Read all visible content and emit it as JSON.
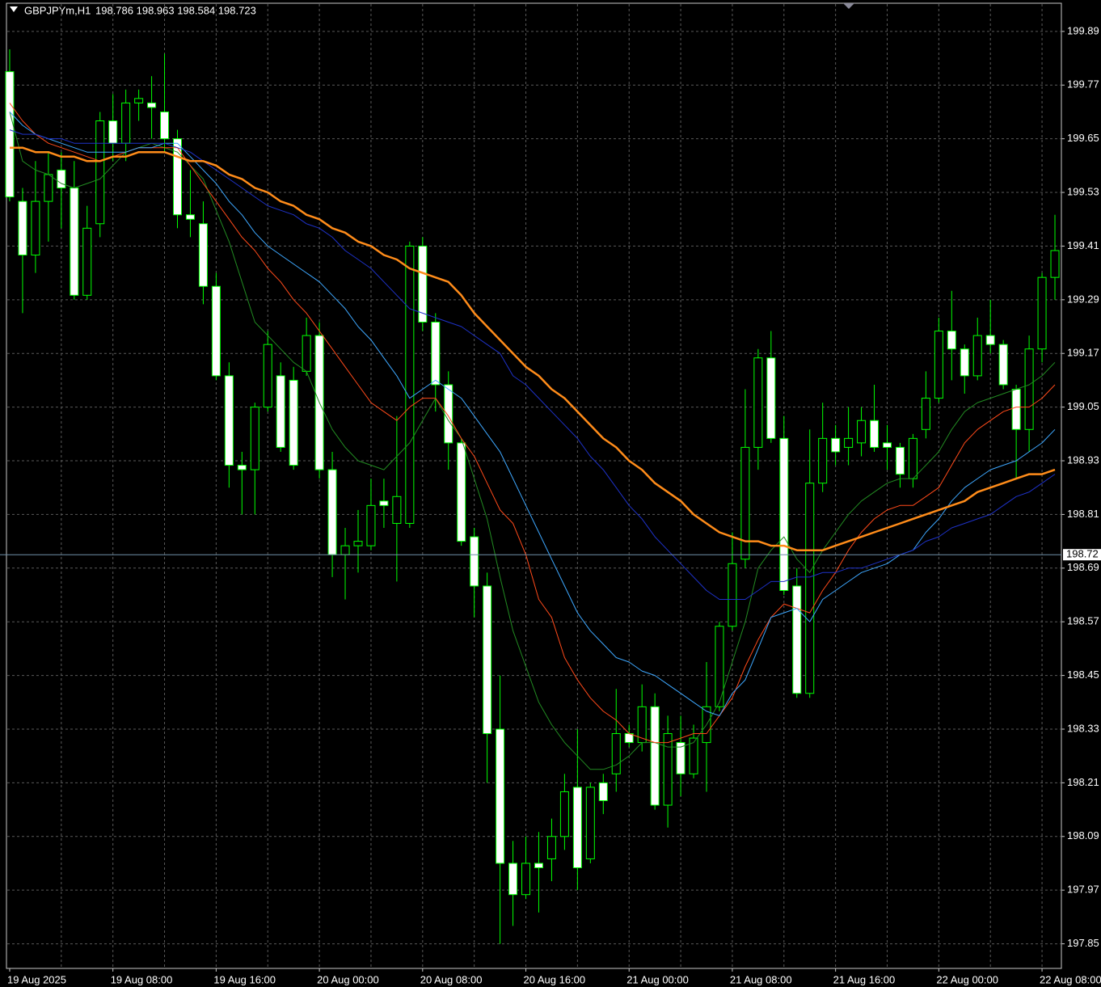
{
  "chart_data": {
    "type": "candlestick",
    "title": "GBPJPYm,H1",
    "subtitle": "198.786 198.963 198.584 198.723",
    "categories": [
      "19 Aug 2025",
      null,
      null,
      null,
      null,
      null,
      null,
      null,
      "19 Aug 08:00",
      null,
      null,
      null,
      null,
      null,
      null,
      null,
      "19 Aug 16:00",
      null,
      null,
      null,
      null,
      null,
      null,
      null,
      "20 Aug 00:00",
      null,
      null,
      null,
      null,
      null,
      null,
      null,
      "20 Aug 08:00",
      null,
      null,
      null,
      null,
      null,
      null,
      null,
      "20 Aug 16:00",
      null,
      null,
      null,
      null,
      null,
      null,
      null,
      "21 Aug 00:00",
      null,
      null,
      null,
      null,
      null,
      null,
      null,
      "21 Aug 08:00",
      null,
      null,
      null,
      null,
      null,
      null,
      null,
      "21 Aug 16:00",
      null,
      null,
      null,
      null,
      null,
      null,
      null,
      "22 Aug 00:00",
      null,
      null,
      null,
      null,
      null,
      null,
      null,
      "22 Aug 08:00",
      null
    ],
    "open": [
      199.8,
      199.51,
      199.39,
      199.51,
      199.58,
      199.54,
      199.3,
      199.46,
      199.69,
      199.64,
      199.73,
      199.73,
      199.71,
      199.65,
      199.48,
      199.46,
      199.32,
      199.12,
      198.92,
      198.91,
      199.05,
      199.12,
      199.11,
      199.13,
      199.21,
      198.91,
      198.72,
      198.74,
      198.74,
      198.84,
      198.79,
      198.79,
      199.41,
      199.24,
      199.1,
      198.97,
      198.76,
      198.65,
      198.33,
      198.03,
      197.96,
      198.03,
      198.04,
      198.09,
      198.2,
      198.04,
      198.21,
      198.23,
      198.32,
      198.3,
      198.38,
      198.16,
      198.3,
      198.23,
      198.3,
      198.38,
      198.56,
      198.71,
      198.96,
      199.16,
      198.98,
      198.65,
      198.41,
      198.88,
      198.98,
      198.96,
      198.97,
      199.02,
      198.97,
      198.96,
      198.89,
      199.0,
      199.07,
      199.22,
      199.18,
      199.12,
      199.21,
      199.19,
      199.09,
      199.0,
      199.18,
      199.34
    ],
    "high": [
      199.85,
      199.54,
      199.6,
      199.62,
      199.62,
      199.6,
      199.5,
      199.71,
      199.75,
      199.76,
      199.76,
      199.79,
      199.84,
      199.67,
      199.58,
      199.51,
      199.35,
      199.15,
      198.95,
      199.06,
      199.22,
      199.15,
      199.14,
      199.25,
      199.24,
      198.95,
      198.78,
      198.82,
      198.89,
      198.89,
      199.03,
      199.42,
      199.43,
      199.26,
      199.13,
      198.98,
      198.78,
      198.68,
      198.45,
      198.08,
      198.09,
      198.1,
      198.13,
      198.23,
      198.33,
      198.21,
      198.23,
      198.42,
      198.34,
      198.43,
      198.41,
      198.36,
      198.36,
      198.34,
      198.48,
      198.57,
      198.77,
      199.09,
      199.18,
      199.22,
      199.03,
      198.69,
      199.0,
      199.06,
      199.01,
      199.05,
      199.05,
      199.1,
      199.01,
      198.97,
      198.99,
      199.13,
      199.25,
      199.31,
      199.19,
      199.25,
      199.29,
      199.2,
      199.1,
      199.21,
      199.35,
      199.48
    ],
    "low": [
      199.51,
      199.26,
      199.35,
      199.42,
      199.45,
      199.29,
      199.29,
      199.43,
      199.6,
      199.6,
      199.69,
      199.65,
      199.62,
      199.45,
      199.43,
      199.28,
      199.11,
      198.87,
      198.81,
      198.81,
      199.04,
      198.95,
      198.91,
      199.12,
      198.89,
      198.67,
      198.62,
      198.68,
      198.73,
      198.78,
      198.66,
      198.78,
      199.22,
      199.04,
      198.91,
      198.74,
      198.58,
      198.21,
      197.85,
      197.89,
      197.95,
      197.92,
      197.99,
      198.06,
      197.97,
      198.03,
      198.14,
      198.19,
      198.29,
      198.28,
      198.15,
      198.11,
      198.18,
      198.22,
      198.19,
      198.37,
      198.55,
      198.69,
      198.91,
      198.97,
      198.63,
      198.4,
      198.4,
      198.86,
      198.92,
      198.92,
      198.94,
      198.95,
      198.91,
      198.87,
      198.87,
      198.98,
      199.06,
      199.11,
      199.08,
      199.11,
      199.17,
      199.09,
      198.89,
      198.95,
      199.15,
      199.29
    ],
    "close": [
      199.52,
      199.39,
      199.51,
      199.57,
      199.54,
      199.3,
      199.45,
      199.69,
      199.64,
      199.73,
      199.74,
      199.72,
      199.65,
      199.48,
      199.47,
      199.32,
      199.12,
      198.92,
      198.91,
      199.05,
      199.19,
      198.96,
      198.92,
      199.21,
      198.91,
      198.72,
      198.74,
      198.75,
      198.83,
      198.83,
      198.85,
      199.41,
      199.24,
      199.1,
      198.97,
      198.75,
      198.65,
      198.32,
      198.03,
      197.96,
      198.03,
      198.02,
      198.09,
      198.19,
      198.02,
      198.2,
      198.17,
      198.32,
      198.3,
      198.38,
      198.16,
      198.32,
      198.23,
      198.31,
      198.38,
      198.56,
      198.7,
      198.96,
      199.16,
      198.98,
      198.64,
      198.41,
      198.88,
      198.98,
      198.95,
      198.98,
      199.02,
      198.96,
      198.96,
      198.9,
      198.98,
      199.07,
      199.22,
      199.18,
      199.12,
      199.21,
      199.19,
      199.1,
      199.0,
      199.18,
      199.34,
      199.4
    ],
    "candle_color": "#00ff00",
    "bear_fill": "#ffffff",
    "bull_fill": "#000000",
    "series": [
      {
        "color": "#228b22",
        "width": 1,
        "values": [
          199.71,
          199.6,
          199.58,
          199.57,
          199.55,
          199.54,
          199.55,
          199.56,
          199.59,
          199.62,
          199.63,
          199.64,
          199.63,
          199.62,
          199.59,
          199.56,
          199.49,
          199.42,
          199.33,
          199.24,
          199.21,
          199.18,
          199.15,
          199.13,
          199.06,
          199.0,
          198.96,
          198.93,
          198.92,
          198.91,
          198.94,
          198.97,
          199.02,
          199.07,
          199.02,
          198.98,
          198.89,
          198.8,
          198.67,
          198.55,
          198.47,
          198.39,
          198.34,
          198.3,
          198.27,
          198.24,
          198.24,
          198.25,
          198.27,
          198.3,
          198.3,
          198.29,
          198.29,
          198.3,
          198.34,
          198.39,
          198.48,
          198.57,
          198.69,
          198.73,
          198.76,
          198.71,
          198.68,
          198.73,
          198.77,
          198.81,
          198.84,
          198.86,
          198.88,
          198.89,
          198.89,
          198.92,
          198.95,
          199.0,
          199.04,
          199.06,
          199.07,
          199.08,
          199.09,
          199.1,
          199.12,
          199.15
        ]
      },
      {
        "color": "#ff4a1a",
        "width": 1,
        "values": [
          199.73,
          199.69,
          199.66,
          199.64,
          199.63,
          199.62,
          199.61,
          199.6,
          199.61,
          199.62,
          199.63,
          199.63,
          199.63,
          199.63,
          199.59,
          199.55,
          199.51,
          199.47,
          199.43,
          199.4,
          199.36,
          199.33,
          199.29,
          199.26,
          199.22,
          199.18,
          199.14,
          199.1,
          199.06,
          199.04,
          199.02,
          199.05,
          199.07,
          199.07,
          199.03,
          198.98,
          198.94,
          198.88,
          198.82,
          198.79,
          198.72,
          198.62,
          198.58,
          198.49,
          198.44,
          198.4,
          198.37,
          198.35,
          198.32,
          198.31,
          198.3,
          198.3,
          198.31,
          198.32,
          198.32,
          198.36,
          198.4,
          198.47,
          198.53,
          198.58,
          198.61,
          198.6,
          198.59,
          198.64,
          198.68,
          198.73,
          198.77,
          198.8,
          198.82,
          198.83,
          198.83,
          198.85,
          198.87,
          198.92,
          198.97,
          199.0,
          199.02,
          199.04,
          199.05,
          199.05,
          199.07,
          199.1
        ]
      },
      {
        "color": "#3ea8ff",
        "width": 1,
        "values": [
          199.71,
          199.68,
          199.66,
          199.65,
          199.64,
          199.63,
          199.62,
          199.62,
          199.62,
          199.62,
          199.63,
          199.63,
          199.64,
          199.64,
          199.61,
          199.58,
          199.55,
          199.51,
          199.48,
          199.44,
          199.41,
          199.39,
          199.37,
          199.35,
          199.33,
          199.3,
          199.27,
          199.23,
          199.2,
          199.16,
          199.12,
          199.07,
          199.09,
          199.11,
          199.09,
          199.07,
          199.03,
          198.99,
          198.95,
          198.89,
          198.83,
          198.77,
          198.71,
          198.65,
          198.59,
          198.55,
          198.52,
          198.49,
          198.48,
          198.46,
          198.45,
          198.43,
          198.41,
          198.39,
          198.37,
          198.36,
          198.41,
          198.44,
          198.51,
          198.58,
          198.59,
          198.6,
          198.57,
          198.62,
          198.64,
          198.66,
          198.68,
          198.69,
          198.7,
          198.72,
          198.73,
          198.77,
          198.8,
          198.84,
          198.87,
          198.89,
          198.91,
          198.92,
          198.93,
          198.95,
          198.97,
          199.0
        ]
      },
      {
        "color": "#1e32c8",
        "width": 1,
        "values": [
          199.67,
          199.66,
          199.66,
          199.65,
          199.65,
          199.64,
          199.64,
          199.64,
          199.64,
          199.64,
          199.64,
          199.64,
          199.64,
          199.63,
          199.62,
          199.6,
          199.58,
          199.56,
          199.54,
          199.52,
          199.5,
          199.49,
          199.48,
          199.46,
          199.45,
          199.43,
          199.4,
          199.38,
          199.36,
          199.33,
          199.3,
          199.27,
          199.26,
          199.25,
          199.24,
          199.23,
          199.21,
          199.19,
          199.17,
          199.12,
          199.1,
          199.07,
          199.04,
          199.01,
          198.98,
          198.94,
          198.91,
          198.87,
          198.83,
          198.8,
          198.76,
          198.73,
          198.7,
          198.67,
          198.64,
          198.62,
          198.62,
          198.62,
          198.64,
          198.66,
          198.66,
          198.67,
          198.67,
          198.68,
          198.68,
          198.69,
          198.69,
          198.7,
          198.71,
          198.72,
          198.73,
          198.75,
          198.76,
          198.78,
          198.79,
          198.8,
          198.81,
          198.83,
          198.85,
          198.86,
          198.88,
          198.9
        ]
      },
      {
        "color": "#ff8c1a",
        "width": 2.5,
        "values": [
          199.63,
          199.63,
          199.62,
          199.62,
          199.61,
          199.61,
          199.6,
          199.6,
          199.61,
          199.61,
          199.62,
          199.62,
          199.62,
          199.61,
          199.6,
          199.6,
          199.59,
          199.57,
          199.56,
          199.54,
          199.53,
          199.51,
          199.5,
          199.48,
          199.47,
          199.45,
          199.44,
          199.42,
          199.41,
          199.39,
          199.38,
          199.36,
          199.35,
          199.34,
          199.33,
          199.3,
          199.26,
          199.23,
          199.2,
          199.17,
          199.14,
          199.12,
          199.09,
          199.07,
          199.04,
          199.01,
          198.98,
          198.96,
          198.93,
          198.91,
          198.88,
          198.86,
          198.84,
          198.81,
          198.79,
          198.77,
          198.76,
          198.75,
          198.75,
          198.74,
          198.74,
          198.73,
          198.73,
          198.73,
          198.74,
          198.75,
          198.76,
          198.77,
          198.78,
          198.79,
          198.8,
          198.81,
          198.82,
          198.83,
          198.84,
          198.86,
          198.87,
          198.88,
          198.89,
          198.9,
          198.9,
          198.91
        ]
      }
    ],
    "ylim": [
      197.795,
      199.953
    ],
    "yticks": [
      199.89,
      199.77,
      199.65,
      199.53,
      199.41,
      199.29,
      199.17,
      199.05,
      198.93,
      198.81,
      198.69,
      198.57,
      198.45,
      198.33,
      198.21,
      198.09,
      197.97,
      197.85
    ],
    "grid": true,
    "grid_color": "#5a5a5a",
    "price_line": {
      "value": 198.72,
      "color": "#6f8fa8"
    }
  }
}
